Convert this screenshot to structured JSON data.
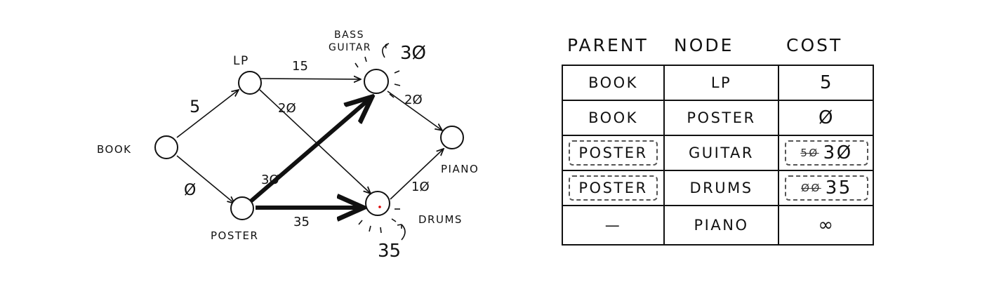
{
  "graph": {
    "nodes": {
      "book": "BOOK",
      "lp": "LP",
      "bass_guitar_line1": "BASS",
      "bass_guitar_line2": "GUITAR",
      "piano": "PIANO",
      "poster": "POSTER",
      "drums": "DRUMS"
    },
    "weights": {
      "book_lp": "5",
      "book_poster": "Ø",
      "lp_guitar": "15",
      "lp_drums": "2Ø",
      "poster_guitar": "3Ø",
      "poster_drums": "35",
      "guitar_piano": "2Ø",
      "drums_piano": "1Ø"
    },
    "annotations": {
      "guitar_cost": "3Ø",
      "drums_cost": "35"
    },
    "highlighted_edges": [
      "poster_guitar",
      "poster_drums"
    ]
  },
  "table": {
    "headers": {
      "parent": "PARENT",
      "node": "NODE",
      "cost": "COST"
    },
    "rows": [
      {
        "parent": "BOOK",
        "node": "LP",
        "old_cost": "",
        "cost": "5",
        "updated": false
      },
      {
        "parent": "BOOK",
        "node": "POSTER",
        "old_cost": "",
        "cost": "Ø",
        "updated": false
      },
      {
        "parent": "POSTER",
        "node": "GUITAR",
        "old_cost": "5Ø",
        "cost": "3Ø",
        "updated": true
      },
      {
        "parent": "POSTER",
        "node": "DRUMS",
        "old_cost": "ØØ",
        "cost": "35",
        "updated": true
      },
      {
        "parent": "—",
        "node": "PIANO",
        "old_cost": "",
        "cost": "∞",
        "updated": false
      }
    ]
  }
}
